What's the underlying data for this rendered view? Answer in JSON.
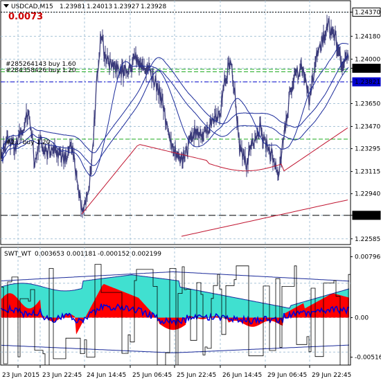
{
  "main_panel": {
    "symbol_label": "USDCAD,M15",
    "ohlc": [
      "1.23981",
      "1.24013",
      "1.23927",
      "1.23928"
    ],
    "spread_value": "0.0073",
    "spread_color": "#cc0000",
    "price_line_color": "#3a3a7a",
    "orders": [
      {
        "label": "#285264143 buy 1.60",
        "price": 1.2392,
        "color": "#1faa1f"
      },
      {
        "label": "#284358426 buy 1.20",
        "price": 1.239,
        "color": "#1faa1f"
      },
      {
        "label": "#2... buy 1.20",
        "price": 1.2337,
        "color": "#1faa1f"
      }
    ],
    "price_axis_labels": [
      "1.24370",
      "1.24180",
      "1.24000",
      "1.23928",
      "1.23821",
      "1.23650",
      "1.23470",
      "1.23295",
      "1.23115",
      "1.22940",
      "1.22770",
      "1.22585"
    ],
    "highlighted_price_labels": [
      {
        "value": "1.24370",
        "bg": "#ffffff",
        "fg": "#000000"
      },
      {
        "value": "1.23928",
        "bg": "#000000",
        "fg": "#ffffff"
      },
      {
        "value": "1.23821",
        "bg": "#0000cc",
        "fg": "#ffffff"
      },
      {
        "value": "1.22770",
        "bg": "#000000",
        "fg": "#ffffff"
      }
    ]
  },
  "indicator_panel": {
    "label": "SWT_WT",
    "values": [
      "0.003653",
      "0.001181",
      "-0.000152",
      "0.002199"
    ],
    "axis_labels": [
      "0.007969",
      "0.00",
      "-0.005168"
    ],
    "fill_colors": {
      "positive": "#ff0000",
      "band": "#40e0d0"
    }
  },
  "time_axis": {
    "labels": [
      "23 Jun 2015",
      "23 Jun 22:45",
      "24 Jun 14:45",
      "25 Jun 06:45",
      "25 Jun 22:45",
      "26 Jun 14:45",
      "29 Jun 06:45",
      "29 Jun 22:45"
    ]
  },
  "chart_data": [
    {
      "type": "line",
      "title": "USDCAD,M15",
      "x": [
        "23 Jun 2015",
        "23 Jun 22:45",
        "24 Jun 14:45",
        "25 Jun 06:45",
        "25 Jun 22:45",
        "26 Jun 14:45",
        "29 Jun 06:45",
        "29 Jun 22:45"
      ],
      "ylim": [
        1.22585,
        1.2446
      ],
      "series": [
        {
          "values": [
            1.2338,
            1.2278,
            1.2402,
            1.2372,
            1.2318,
            1.2325,
            1.2385,
            1.24
          ]
        }
      ]
    },
    {
      "type": "line",
      "title": "SWT_WT",
      "x": [
        "23 Jun 2015",
        "23 Jun 22:45",
        "24 Jun 14:45",
        "25 Jun 06:45",
        "25 Jun 22:45",
        "26 Jun 14:45",
        "29 Jun 06:45",
        "29 Jun 22:45"
      ],
      "ylim": [
        -0.005168,
        0.007969
      ],
      "series": [
        {
          "values": [
            0.0015,
            -0.001,
            0.004,
            0.0035,
            0.0008,
            -0.0012,
            -0.0005,
            0.0028
          ]
        }
      ]
    }
  ]
}
